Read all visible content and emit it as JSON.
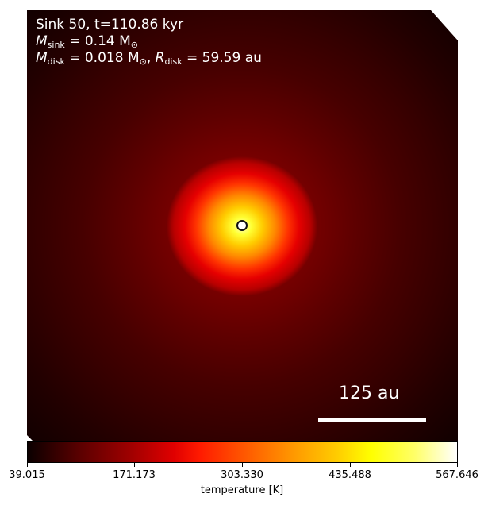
{
  "figure": {
    "title_line1": "Sink 50, t=110.86 kyr",
    "mass_sink": {
      "symbol": "M",
      "subscript": "sink",
      "value": "= 0.14 M",
      "unit_sub": "⊙"
    },
    "mass_disk": {
      "symbol": "M",
      "subscript": "disk",
      "value": "= 0.018 M",
      "unit_sub": "⊙",
      "sep": ", ",
      "r_symbol": "R",
      "r_subscript": "disk",
      "r_value": "= 59.59 au"
    },
    "scale_bar_label": "125 au"
  },
  "colorbar": {
    "label": "temperature [K]",
    "ticks": [
      "39.015",
      "171.173",
      "303.330",
      "435.488",
      "567.646"
    ],
    "colormap": "hot",
    "range": [
      39.015,
      567.646
    ]
  }
}
